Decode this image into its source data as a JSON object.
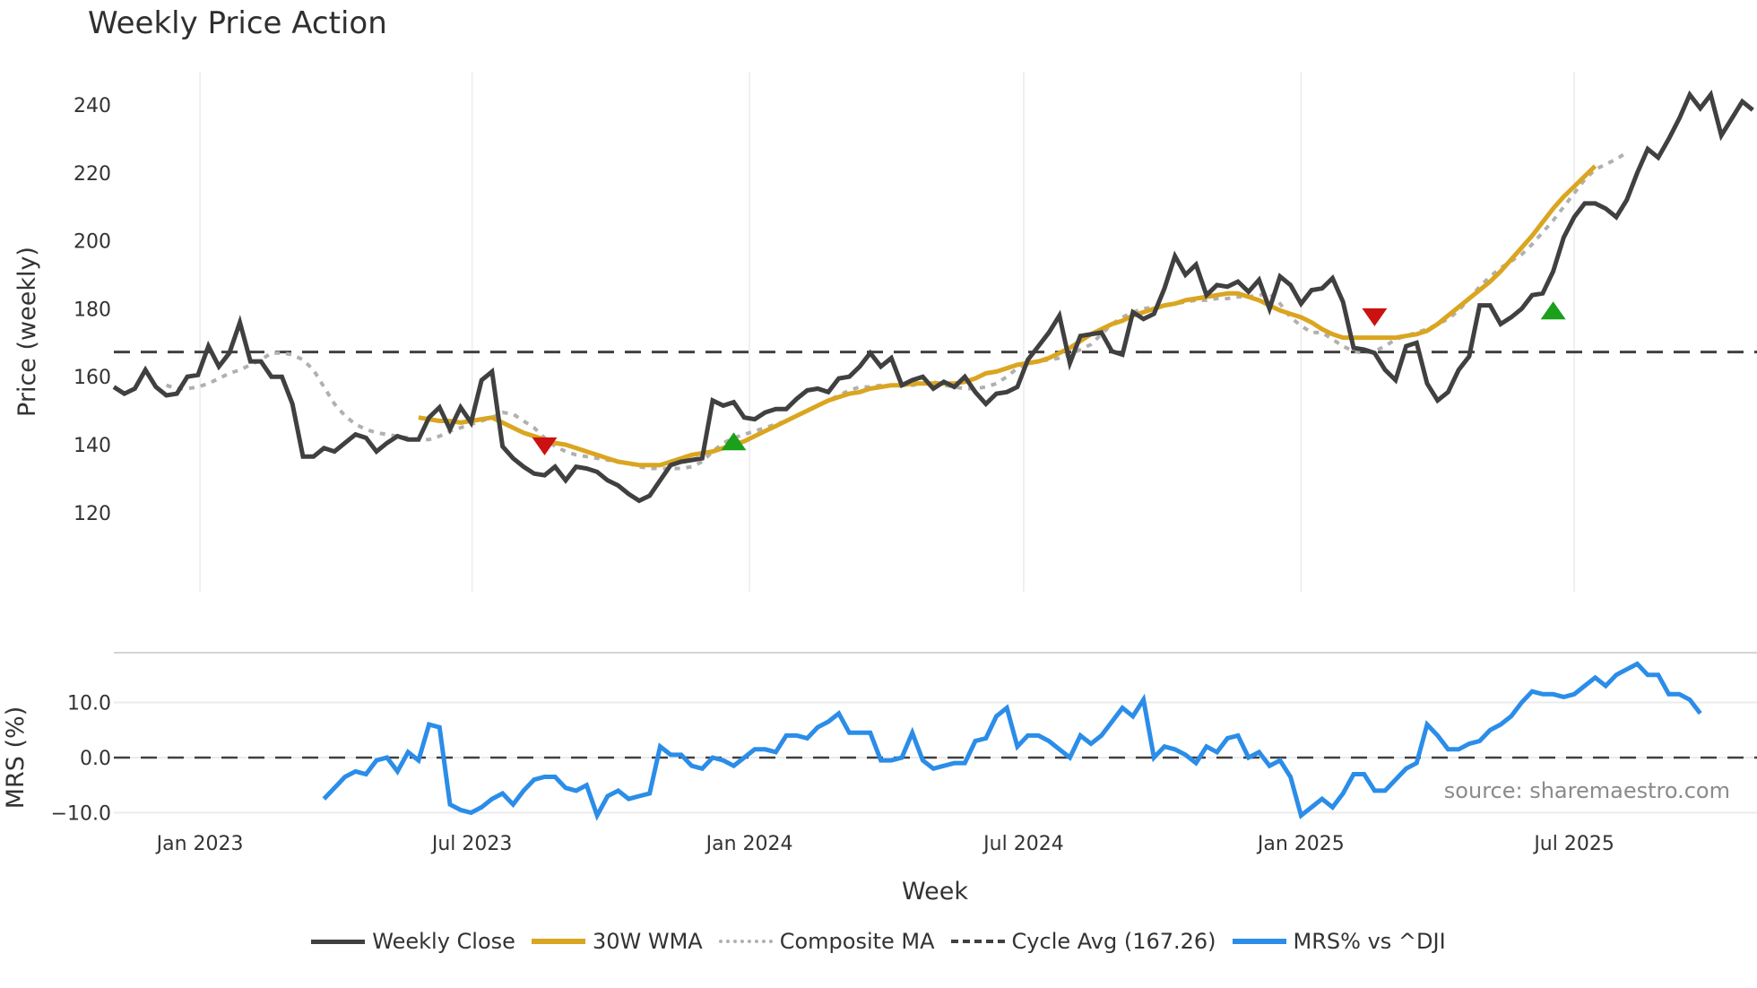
{
  "title": "Weekly Price Action",
  "source_note": "source: sharemaestro.com",
  "colors": {
    "weekly_close": "#404040",
    "wma": "#DAA520",
    "composite": "#B0B0B0",
    "cycle": "#404040",
    "mrs": "#2B8DE8",
    "signal_up": "#1AA01A",
    "signal_down": "#CC1111",
    "grid": "#EBEBEB"
  },
  "legend": [
    {
      "key": "weekly_close",
      "label": "Weekly Close"
    },
    {
      "key": "wma",
      "label": "30W WMA"
    },
    {
      "key": "composite",
      "label": "Composite MA"
    },
    {
      "key": "cycle",
      "label": "Cycle Avg (167.26)"
    },
    {
      "key": "mrs",
      "label": "MRS% vs ^DJI"
    }
  ],
  "chart_data": [
    {
      "type": "line",
      "title": "Weekly Price Action",
      "xlabel": "Week",
      "ylabel": "Price (weekly)",
      "ylim": [
        117,
        250
      ],
      "yticks": [
        120,
        140,
        160,
        180,
        200,
        220,
        240
      ],
      "xticks": [
        {
          "label": "Jan 2023",
          "week_index": 8.2
        },
        {
          "label": "Jul 2023",
          "week_index": 34.1
        },
        {
          "label": "Jan 2024",
          "week_index": 60.5
        },
        {
          "label": "Jul 2024",
          "week_index": 86.6
        },
        {
          "label": "Jan 2025",
          "week_index": 113.0
        },
        {
          "label": "Jul 2025",
          "week_index": 139.0
        }
      ],
      "grid": true,
      "x_week_count": 157,
      "series": [
        {
          "name": "Weekly Close",
          "start_index": 0,
          "values": [
            157,
            155,
            156.5,
            162,
            157,
            154.5,
            155,
            160,
            160.5,
            169,
            163,
            167,
            176,
            164.5,
            164.5,
            160,
            160,
            152,
            136.5,
            136.5,
            139,
            138,
            140.5,
            143,
            142,
            138,
            140.5,
            142.5,
            141.5,
            141.5,
            148,
            151,
            144.5,
            151,
            146.5,
            159,
            161.5,
            139.5,
            136,
            133.5,
            131.5,
            131,
            133.5,
            129.5,
            133.5,
            133,
            132,
            129.5,
            128,
            125.5,
            123.5,
            125,
            129.5,
            134,
            135,
            135.5,
            136,
            153,
            151.5,
            152.5,
            148,
            147.5,
            149.5,
            150.5,
            150.5,
            153.5,
            156,
            156.5,
            155.5,
            159.5,
            160,
            163,
            167,
            163,
            165.5,
            157.5,
            159,
            160,
            156.5,
            158.5,
            157,
            160,
            155.5,
            152,
            155,
            155.5,
            157,
            165,
            169,
            173,
            178,
            164,
            172,
            172.5,
            173,
            167.5,
            166.5,
            179,
            177,
            178.5,
            186,
            195.5,
            190,
            193,
            184,
            187,
            186.5,
            188,
            185,
            188.5,
            180,
            189.5,
            187,
            181.5,
            185.5,
            186,
            189,
            182,
            168.5,
            168,
            167,
            162,
            159,
            169,
            170,
            158,
            153,
            155.5,
            162,
            166,
            181,
            181,
            175.5,
            177.5,
            180,
            184,
            184.5,
            191,
            201,
            207,
            211,
            211,
            209.5,
            207,
            212,
            220,
            227,
            224.5,
            230,
            236,
            243,
            239,
            243,
            231,
            236,
            241,
            238.5
          ]
        },
        {
          "name": "30W WMA",
          "start_index": 29,
          "values": [
            148,
            147.5,
            147,
            147,
            146.5,
            147,
            147.5,
            148,
            146.5,
            145,
            143.5,
            142.5,
            141.5,
            140.5,
            140,
            139,
            138,
            137,
            136,
            135,
            134.5,
            134,
            134,
            134,
            135,
            136,
            137,
            137.5,
            138,
            139,
            140,
            141,
            142.5,
            144,
            145.5,
            147,
            148.5,
            150,
            151.5,
            153,
            154,
            155,
            155.5,
            156.5,
            157,
            157.5,
            157.5,
            158,
            158,
            158,
            158,
            158,
            158.5,
            159.5,
            161,
            161.5,
            162.5,
            163.5,
            164,
            164.5,
            165.5,
            167,
            168.5,
            170.5,
            172.5,
            174,
            175.5,
            176.5,
            178,
            179,
            180,
            181,
            181.5,
            182.5,
            183,
            183.5,
            184,
            184.5,
            184.5,
            183.5,
            182.5,
            181,
            179.5,
            178.5,
            177.5,
            176,
            174,
            172.5,
            171.5,
            171.5,
            171.5,
            171.5,
            171.5,
            171.5,
            172,
            172.5,
            173.5,
            175.5,
            178,
            180.5,
            183,
            185.5,
            188,
            191,
            194.5,
            198,
            201.5,
            205.5,
            209.5,
            213,
            216,
            219,
            222
          ]
        },
        {
          "name": "Composite MA",
          "start_index": 5,
          "values": [
            157.5,
            156.5,
            156.5,
            157,
            158,
            159.5,
            161,
            162,
            163.5,
            165,
            167,
            167,
            166.5,
            165,
            162,
            157,
            152,
            148.5,
            146,
            144.5,
            143.5,
            143,
            142.5,
            142,
            141.5,
            141.5,
            142.5,
            144,
            145,
            146,
            147,
            148,
            149.5,
            149,
            147,
            145,
            142,
            139.5,
            138,
            137,
            136.5,
            136,
            135.5,
            135,
            134.5,
            133.5,
            133,
            133,
            133,
            133,
            133.5,
            135,
            138,
            140.5,
            142,
            143,
            144,
            145,
            146,
            147,
            148.5,
            150,
            151.5,
            153,
            154.5,
            156,
            157,
            157,
            157.5,
            157.5,
            157.5,
            157.5,
            158,
            158.5,
            157.5,
            157,
            156.5,
            156.5,
            157,
            158,
            160,
            162.5,
            164,
            164.5,
            165,
            165.5,
            166.5,
            168,
            169.5,
            172.5,
            175.5,
            177.5,
            179,
            180,
            180.5,
            181,
            181.5,
            182,
            182.5,
            182.5,
            183,
            183,
            183.5,
            183.5,
            184,
            184.5,
            181.5,
            177.5,
            175,
            173,
            173,
            171,
            169,
            167.5,
            167,
            167.5,
            169,
            171,
            172,
            173,
            174,
            175.5,
            177,
            179.5,
            183,
            186.5,
            189.5,
            192,
            194,
            196,
            199,
            202.5,
            206,
            210,
            214,
            218,
            221,
            222.5,
            224,
            226
          ]
        },
        {
          "name": "Cycle Avg (167.26)",
          "constant": 167.26
        }
      ],
      "annotations": [
        {
          "type": "signal-down",
          "week_index": 41,
          "value": 139.5
        },
        {
          "type": "signal-up",
          "week_index": 59,
          "value": 141
        },
        {
          "type": "signal-down",
          "week_index": 120,
          "value": 177.5
        },
        {
          "type": "signal-up",
          "week_index": 137,
          "value": 179.5
        }
      ]
    },
    {
      "type": "line",
      "title": "",
      "xlabel": "Week",
      "ylabel": "MRS (%)",
      "ylim": [
        -12.5,
        19.5
      ],
      "yticks": [
        -10.0,
        0.0,
        10.0
      ],
      "ytick_labels": [
        "−10.0",
        "0.0",
        "10.0"
      ],
      "grid": true,
      "series": [
        {
          "name": "MRS% vs ^DJI",
          "start_index": 20,
          "values": [
            -7.5,
            -5.5,
            -3.5,
            -2.5,
            -3,
            -0.5,
            0,
            -2.5,
            1,
            -0.5,
            6,
            5.5,
            -8.5,
            -9.5,
            -10,
            -9,
            -7.5,
            -6.5,
            -8.5,
            -6,
            -4,
            -3.5,
            -3.5,
            -5.5,
            -6,
            -5,
            -10.5,
            -7,
            -6,
            -7.5,
            -7,
            -6.5,
            2,
            0.5,
            0.5,
            -1.5,
            -2,
            0,
            -0.5,
            -1.5,
            0,
            1.5,
            1.5,
            1,
            4,
            4,
            3.5,
            5.5,
            6.5,
            8,
            4.5,
            4.5,
            4.5,
            -0.5,
            -0.5,
            0,
            4.5,
            -0.5,
            -2,
            -1.5,
            -1,
            -1,
            3,
            3.5,
            7.5,
            9,
            2,
            4,
            4,
            3,
            1.5,
            0,
            4,
            2.5,
            4,
            6.5,
            9,
            7.5,
            10.5,
            0,
            2,
            1.5,
            0.5,
            -1,
            2,
            1,
            3.5,
            4,
            0,
            1,
            -1.5,
            -0.5,
            -3.5,
            -10.5,
            -9,
            -7.5,
            -9,
            -6.5,
            -3,
            -3,
            -6,
            -6,
            -4,
            -2,
            -1,
            6,
            4,
            1.5,
            1.5,
            2.5,
            3,
            5,
            6,
            7.5,
            10,
            12,
            11.5,
            11.5,
            11,
            11.5,
            13,
            14.5,
            13,
            15,
            16,
            17,
            15,
            15,
            11.5,
            11.5,
            10.5,
            8
          ]
        },
        {
          "name": "Zero line",
          "constant": 0
        }
      ],
      "annotations": [
        {
          "type": "text",
          "label": "source: sharemaestro.com"
        }
      ]
    }
  ]
}
